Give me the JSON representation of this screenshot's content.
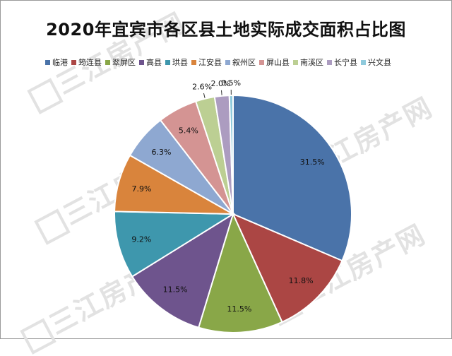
{
  "watermark": {
    "text": "三江房产网"
  },
  "chart_data": {
    "type": "pie",
    "title": "2020年宜宾市各区县土地实际成交面积占比图",
    "legend_position": "top",
    "slices": [
      {
        "name": "临港",
        "value": 31.5,
        "label": "31.5%",
        "color": "#4a73a9"
      },
      {
        "name": "筠连县",
        "value": 11.8,
        "label": "11.8%",
        "color": "#ab4644"
      },
      {
        "name": "翠屏区",
        "value": 11.5,
        "label": "11.5%",
        "color": "#89a748"
      },
      {
        "name": "高县",
        "value": 11.5,
        "label": "11.5%",
        "color": "#6e548d"
      },
      {
        "name": "珙县",
        "value": 9.2,
        "label": "9.2%",
        "color": "#3e97ad"
      },
      {
        "name": "江安县",
        "value": 7.9,
        "label": "7.9%",
        "color": "#d9843c"
      },
      {
        "name": "叙州区",
        "value": 6.3,
        "label": "6.3%",
        "color": "#8ea8d1"
      },
      {
        "name": "屏山县",
        "value": 5.4,
        "label": "5.4%",
        "color": "#d49493"
      },
      {
        "name": "南溪区",
        "value": 2.6,
        "label": "2.6%",
        "color": "#bccf93"
      },
      {
        "name": "长宁县",
        "value": 2.0,
        "label": "2.0%",
        "color": "#ac9cc0"
      },
      {
        "name": "兴文县",
        "value": 0.5,
        "label": "0.5%",
        "color": "#8fcadc"
      }
    ]
  }
}
